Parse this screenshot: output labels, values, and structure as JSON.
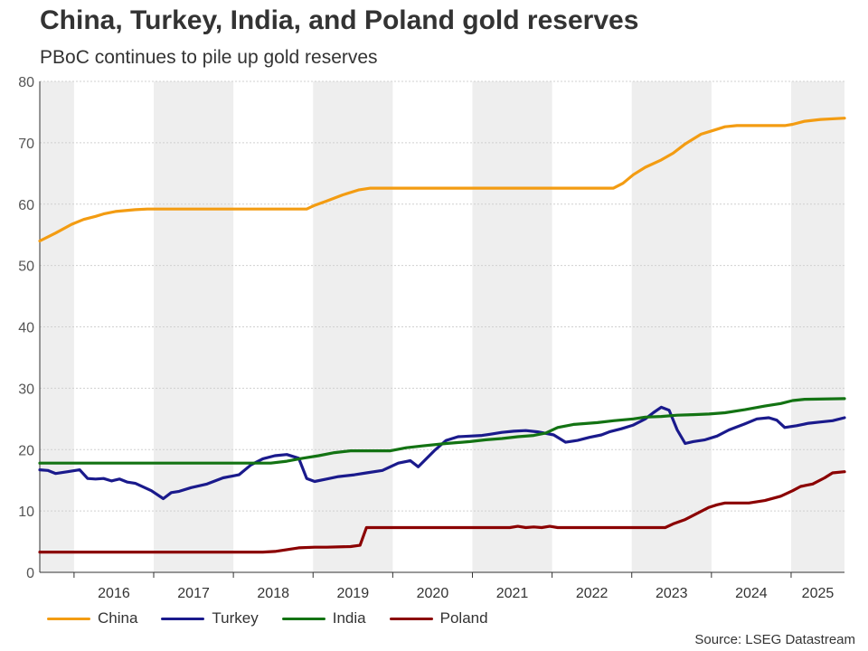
{
  "title": "China, Turkey, India, and Poland gold reserves",
  "subtitle": "PBoC continues to pile up gold reserves",
  "source": "Source: LSEG Datastream",
  "chart_data": {
    "type": "line",
    "title": "China, Turkey, India, and Poland gold reserves",
    "xlabel": "",
    "ylabel": "",
    "ylim": [
      0,
      80
    ],
    "xlim": [
      2015.4,
      2025.5
    ],
    "y_ticks": [
      "0",
      "10",
      "20",
      "30",
      "40",
      "50",
      "60",
      "70",
      "80"
    ],
    "year_bands": [
      {
        "start": 2015.4,
        "end": 2015.83,
        "shade": true
      },
      {
        "start": 2015.83,
        "end": 2016.83,
        "shade": false,
        "label": "2016"
      },
      {
        "start": 2016.83,
        "end": 2017.83,
        "shade": true,
        "label": "2017"
      },
      {
        "start": 2017.83,
        "end": 2018.83,
        "shade": false,
        "label": "2018"
      },
      {
        "start": 2018.83,
        "end": 2019.83,
        "shade": true,
        "label": "2019"
      },
      {
        "start": 2019.83,
        "end": 2020.83,
        "shade": false,
        "label": "2020"
      },
      {
        "start": 2020.83,
        "end": 2021.83,
        "shade": true,
        "label": "2021"
      },
      {
        "start": 2021.83,
        "end": 2022.83,
        "shade": false,
        "label": "2022"
      },
      {
        "start": 2022.83,
        "end": 2023.83,
        "shade": true,
        "label": "2023"
      },
      {
        "start": 2023.83,
        "end": 2024.83,
        "shade": false,
        "label": "2024"
      },
      {
        "start": 2024.83,
        "end": 2025.5,
        "shade": true,
        "label": "2025"
      }
    ],
    "legend_position": "bottom-left",
    "series": [
      {
        "name": "China",
        "color": "#F39C12",
        "points": [
          [
            2015.4,
            54.0
          ],
          [
            2015.6,
            55.3
          ],
          [
            2015.8,
            56.7
          ],
          [
            2015.95,
            57.5
          ],
          [
            2016.1,
            58.0
          ],
          [
            2016.2,
            58.4
          ],
          [
            2016.35,
            58.8
          ],
          [
            2016.6,
            59.1
          ],
          [
            2016.75,
            59.2
          ],
          [
            2017.0,
            59.2
          ],
          [
            2018.0,
            59.2
          ],
          [
            2018.5,
            59.2
          ],
          [
            2018.75,
            59.2
          ],
          [
            2018.85,
            59.8
          ],
          [
            2019.0,
            60.5
          ],
          [
            2019.2,
            61.5
          ],
          [
            2019.4,
            62.3
          ],
          [
            2019.55,
            62.6
          ],
          [
            2020.0,
            62.6
          ],
          [
            2021.0,
            62.6
          ],
          [
            2022.0,
            62.6
          ],
          [
            2022.6,
            62.6
          ],
          [
            2022.72,
            63.4
          ],
          [
            2022.85,
            64.8
          ],
          [
            2023.0,
            66.0
          ],
          [
            2023.2,
            67.2
          ],
          [
            2023.35,
            68.3
          ],
          [
            2023.5,
            69.8
          ],
          [
            2023.7,
            71.4
          ],
          [
            2023.85,
            72.0
          ],
          [
            2024.0,
            72.6
          ],
          [
            2024.15,
            72.8
          ],
          [
            2024.5,
            72.8
          ],
          [
            2024.75,
            72.8
          ],
          [
            2024.85,
            73.0
          ],
          [
            2025.0,
            73.5
          ],
          [
            2025.2,
            73.8
          ],
          [
            2025.5,
            74.0
          ]
        ]
      },
      {
        "name": "Turkey",
        "color": "#1A1A8C",
        "points": [
          [
            2015.4,
            16.7
          ],
          [
            2015.5,
            16.6
          ],
          [
            2015.6,
            16.1
          ],
          [
            2015.75,
            16.4
          ],
          [
            2015.9,
            16.7
          ],
          [
            2016.0,
            15.3
          ],
          [
            2016.1,
            15.2
          ],
          [
            2016.2,
            15.3
          ],
          [
            2016.3,
            14.9
          ],
          [
            2016.4,
            15.2
          ],
          [
            2016.5,
            14.7
          ],
          [
            2016.6,
            14.5
          ],
          [
            2016.8,
            13.3
          ],
          [
            2016.95,
            12.0
          ],
          [
            2017.05,
            13.0
          ],
          [
            2017.15,
            13.2
          ],
          [
            2017.3,
            13.8
          ],
          [
            2017.5,
            14.4
          ],
          [
            2017.7,
            15.4
          ],
          [
            2017.9,
            15.9
          ],
          [
            2018.05,
            17.5
          ],
          [
            2018.2,
            18.5
          ],
          [
            2018.35,
            19.0
          ],
          [
            2018.5,
            19.2
          ],
          [
            2018.65,
            18.6
          ],
          [
            2018.75,
            15.3
          ],
          [
            2018.85,
            14.8
          ],
          [
            2019.0,
            15.2
          ],
          [
            2019.15,
            15.6
          ],
          [
            2019.35,
            15.9
          ],
          [
            2019.5,
            16.2
          ],
          [
            2019.7,
            16.6
          ],
          [
            2019.9,
            17.8
          ],
          [
            2020.05,
            18.2
          ],
          [
            2020.15,
            17.2
          ],
          [
            2020.35,
            19.8
          ],
          [
            2020.5,
            21.5
          ],
          [
            2020.65,
            22.1
          ],
          [
            2020.8,
            22.2
          ],
          [
            2020.95,
            22.3
          ],
          [
            2021.05,
            22.5
          ],
          [
            2021.2,
            22.8
          ],
          [
            2021.35,
            23.0
          ],
          [
            2021.5,
            23.1
          ],
          [
            2021.65,
            22.9
          ],
          [
            2021.85,
            22.4
          ],
          [
            2022.0,
            21.2
          ],
          [
            2022.15,
            21.5
          ],
          [
            2022.3,
            22.0
          ],
          [
            2022.45,
            22.4
          ],
          [
            2022.55,
            22.9
          ],
          [
            2022.7,
            23.4
          ],
          [
            2022.85,
            24.0
          ],
          [
            2023.0,
            25.0
          ],
          [
            2023.1,
            26.0
          ],
          [
            2023.2,
            26.9
          ],
          [
            2023.3,
            26.4
          ],
          [
            2023.4,
            23.2
          ],
          [
            2023.5,
            21.0
          ],
          [
            2023.6,
            21.3
          ],
          [
            2023.75,
            21.6
          ],
          [
            2023.9,
            22.2
          ],
          [
            2024.05,
            23.2
          ],
          [
            2024.25,
            24.2
          ],
          [
            2024.4,
            25.0
          ],
          [
            2024.55,
            25.2
          ],
          [
            2024.65,
            24.8
          ],
          [
            2024.75,
            23.6
          ],
          [
            2024.9,
            23.9
          ],
          [
            2025.05,
            24.3
          ],
          [
            2025.2,
            24.5
          ],
          [
            2025.35,
            24.7
          ],
          [
            2025.5,
            25.2
          ]
        ]
      },
      {
        "name": "India",
        "color": "#137313",
        "points": [
          [
            2015.4,
            17.8
          ],
          [
            2016.0,
            17.8
          ],
          [
            2017.0,
            17.8
          ],
          [
            2018.0,
            17.8
          ],
          [
            2018.3,
            17.8
          ],
          [
            2018.5,
            18.1
          ],
          [
            2018.7,
            18.6
          ],
          [
            2018.9,
            19.0
          ],
          [
            2019.1,
            19.5
          ],
          [
            2019.3,
            19.8
          ],
          [
            2019.5,
            19.8
          ],
          [
            2019.8,
            19.8
          ],
          [
            2020.0,
            20.3
          ],
          [
            2020.2,
            20.6
          ],
          [
            2020.5,
            21.0
          ],
          [
            2020.8,
            21.3
          ],
          [
            2021.0,
            21.6
          ],
          [
            2021.2,
            21.8
          ],
          [
            2021.4,
            22.1
          ],
          [
            2021.6,
            22.3
          ],
          [
            2021.75,
            22.7
          ],
          [
            2021.9,
            23.6
          ],
          [
            2022.1,
            24.1
          ],
          [
            2022.4,
            24.4
          ],
          [
            2022.6,
            24.7
          ],
          [
            2022.85,
            25.0
          ],
          [
            2023.0,
            25.3
          ],
          [
            2023.2,
            25.4
          ],
          [
            2023.4,
            25.6
          ],
          [
            2023.6,
            25.7
          ],
          [
            2023.8,
            25.8
          ],
          [
            2024.0,
            26.0
          ],
          [
            2024.25,
            26.5
          ],
          [
            2024.5,
            27.1
          ],
          [
            2024.7,
            27.5
          ],
          [
            2024.85,
            28.0
          ],
          [
            2025.0,
            28.2
          ],
          [
            2025.5,
            28.3
          ]
        ]
      },
      {
        "name": "Poland",
        "color": "#8B0000",
        "points": [
          [
            2015.4,
            3.3
          ],
          [
            2016.0,
            3.3
          ],
          [
            2017.0,
            3.3
          ],
          [
            2018.0,
            3.3
          ],
          [
            2018.2,
            3.3
          ],
          [
            2018.35,
            3.4
          ],
          [
            2018.5,
            3.7
          ],
          [
            2018.65,
            4.0
          ],
          [
            2018.85,
            4.1
          ],
          [
            2019.0,
            4.1
          ],
          [
            2019.3,
            4.2
          ],
          [
            2019.42,
            4.4
          ],
          [
            2019.5,
            7.3
          ],
          [
            2020.0,
            7.3
          ],
          [
            2020.5,
            7.3
          ],
          [
            2021.0,
            7.3
          ],
          [
            2021.3,
            7.3
          ],
          [
            2021.4,
            7.5
          ],
          [
            2021.5,
            7.3
          ],
          [
            2021.6,
            7.4
          ],
          [
            2021.7,
            7.3
          ],
          [
            2021.8,
            7.5
          ],
          [
            2021.9,
            7.3
          ],
          [
            2022.5,
            7.3
          ],
          [
            2023.0,
            7.3
          ],
          [
            2023.25,
            7.3
          ],
          [
            2023.35,
            7.9
          ],
          [
            2023.5,
            8.6
          ],
          [
            2023.65,
            9.6
          ],
          [
            2023.8,
            10.6
          ],
          [
            2023.9,
            11.0
          ],
          [
            2024.0,
            11.3
          ],
          [
            2024.3,
            11.3
          ],
          [
            2024.5,
            11.7
          ],
          [
            2024.7,
            12.4
          ],
          [
            2024.85,
            13.3
          ],
          [
            2024.95,
            14.0
          ],
          [
            2025.1,
            14.4
          ],
          [
            2025.25,
            15.4
          ],
          [
            2025.35,
            16.2
          ],
          [
            2025.5,
            16.4
          ]
        ]
      }
    ]
  }
}
